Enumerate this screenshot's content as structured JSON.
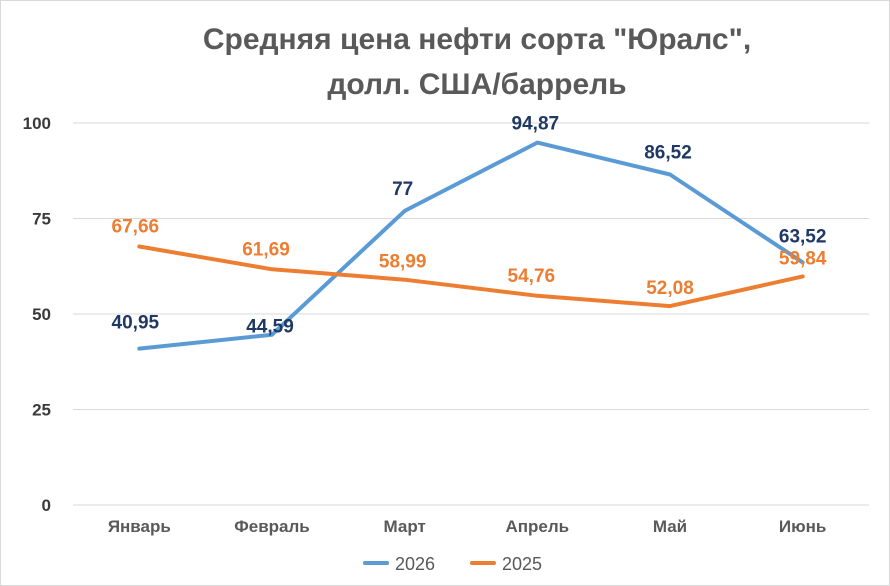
{
  "chart_data": {
    "type": "line",
    "title_lines": [
      "Средняя цена нефти сорта \"Юралс\",",
      "долл. США/баррель"
    ],
    "categories": [
      "Январь",
      "Февраль",
      "Март",
      "Апрель",
      "Май",
      "Июнь"
    ],
    "ylim": [
      0,
      100
    ],
    "yticks": [
      0,
      25,
      50,
      75,
      100
    ],
    "grid": true,
    "legend_position": "bottom",
    "series": [
      {
        "name": "2026",
        "color": "#5b9bd5",
        "label_color": "#1f3864",
        "values": [
          40.95,
          44.59,
          77,
          94.87,
          86.52,
          63.52
        ],
        "labels": [
          "40,95",
          "44,59",
          "77",
          "94,87",
          "86,52",
          "63,52"
        ]
      },
      {
        "name": "2025",
        "color": "#ed7d31",
        "label_color": "#ed7d31",
        "values": [
          67.66,
          61.69,
          58.99,
          54.76,
          52.08,
          59.84
        ],
        "labels": [
          "67,66",
          "61,69",
          "58,99",
          "54,76",
          "52,08",
          "59,84"
        ]
      }
    ]
  }
}
